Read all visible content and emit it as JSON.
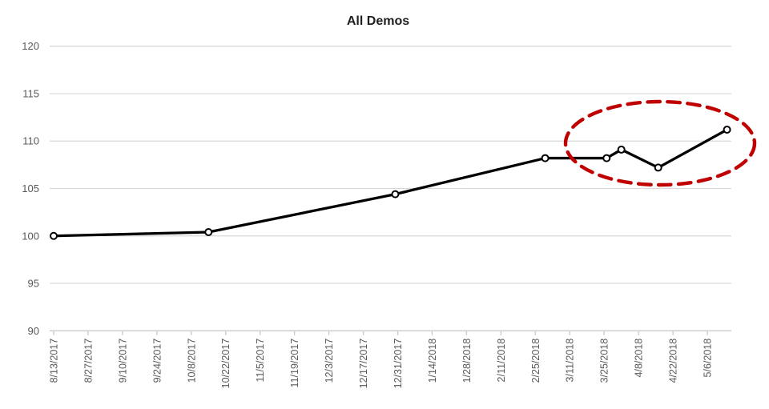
{
  "chart_data": {
    "type": "line",
    "title": "All Demos",
    "grid": true,
    "legend": false,
    "x_axis": {
      "tick_interval_days": 14,
      "tick_labels": [
        "8/13/2017",
        "8/27/2017",
        "9/10/2017",
        "9/24/2017",
        "10/8/2017",
        "10/22/2017",
        "11/5/2017",
        "11/19/2017",
        "12/3/2017",
        "12/17/2017",
        "12/31/2017",
        "1/14/2018",
        "1/28/2018",
        "2/11/2018",
        "2/25/2018",
        "3/11/2018",
        "3/25/2018",
        "4/8/2018",
        "4/22/2018",
        "5/6/2018"
      ]
    },
    "y_axis": {
      "min": 90,
      "max": 120,
      "step": 5,
      "tick_labels": [
        "90",
        "95",
        "100",
        "105",
        "110",
        "115",
        "120"
      ]
    },
    "series": [
      {
        "name": "All Demos",
        "line_color": "#000000",
        "marker_fill": "#ffffff",
        "marker_stroke": "#000000",
        "points": [
          {
            "date": "8/13/2017",
            "value": 100.0
          },
          {
            "date": "10/15/2017",
            "value": 100.4
          },
          {
            "date": "12/30/2017",
            "value": 104.4
          },
          {
            "date": "3/1/2018",
            "value": 108.2
          },
          {
            "date": "3/26/2018",
            "value": 108.2
          },
          {
            "date": "4/1/2018",
            "value": 109.1
          },
          {
            "date": "4/16/2018",
            "value": 107.2
          },
          {
            "date": "5/14/2018",
            "value": 111.2
          }
        ]
      }
    ],
    "annotation": {
      "shape": "dashed-ellipse",
      "color": "#C00000",
      "around": "last four data points (3/26/2018 - 5/14/2018)"
    }
  },
  "colors": {
    "axis_text": "#595959",
    "gridline": "#D9D9D9",
    "axis_line": "#C9C9C9",
    "series_line": "#000000",
    "annotation": "#C00000",
    "background": "#ffffff"
  }
}
